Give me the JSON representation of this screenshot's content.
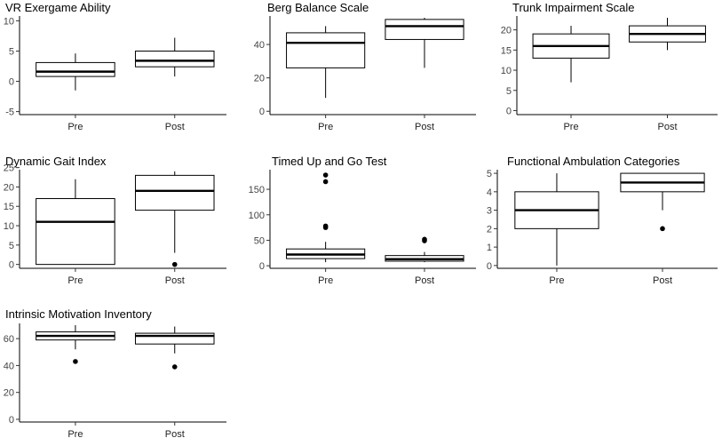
{
  "chart_data": [
    {
      "type": "boxplot",
      "title": "VR Exergame Ability",
      "categories": [
        "Pre",
        "Post"
      ],
      "ylim": [
        -5.5,
        10.5
      ],
      "yticks": [
        -5,
        0,
        5,
        10
      ],
      "ytick_labels": [
        "-5",
        "0",
        "5",
        "10"
      ],
      "boxes": [
        {
          "category": "Pre",
          "whisker_low": -1.5,
          "q1": 0.8,
          "median": 1.6,
          "q3": 3.1,
          "whisker_high": 4.6,
          "outliers": []
        },
        {
          "category": "Post",
          "whisker_low": 0.8,
          "q1": 2.4,
          "median": 3.4,
          "q3": 5.0,
          "whisker_high": 7.2,
          "outliers": []
        }
      ]
    },
    {
      "type": "boxplot",
      "title": "Berg Balance Scale",
      "categories": [
        "Pre",
        "Post"
      ],
      "ylim": [
        -2,
        56
      ],
      "yticks": [
        0,
        20,
        40
      ],
      "ytick_labels": [
        "0",
        "20",
        "40"
      ],
      "boxes": [
        {
          "category": "Pre",
          "whisker_low": 8,
          "q1": 26,
          "median": 41,
          "q3": 47,
          "whisker_high": 51,
          "outliers": []
        },
        {
          "category": "Post",
          "whisker_low": 26,
          "q1": 43,
          "median": 51,
          "q3": 55,
          "whisker_high": 56,
          "outliers": []
        }
      ]
    },
    {
      "type": "boxplot",
      "title": "Trunk Impairment Scale",
      "categories": [
        "Pre",
        "Post"
      ],
      "ylim": [
        -1,
        23
      ],
      "yticks": [
        0,
        5,
        10,
        15,
        20
      ],
      "ytick_labels": [
        "0",
        "5",
        "10",
        "15",
        "20"
      ],
      "boxes": [
        {
          "category": "Pre",
          "whisker_low": 7,
          "q1": 13,
          "median": 16,
          "q3": 19,
          "whisker_high": 21,
          "outliers": []
        },
        {
          "category": "Post",
          "whisker_low": 15,
          "q1": 17,
          "median": 19,
          "q3": 21,
          "whisker_high": 23,
          "outliers": []
        }
      ]
    },
    {
      "type": "boxplot",
      "title": "Dynamic Gait Index",
      "categories": [
        "Pre",
        "Post"
      ],
      "ylim": [
        -1,
        24
      ],
      "yticks": [
        0,
        5,
        10,
        15,
        20,
        25
      ],
      "ytick_labels": [
        "0",
        "5",
        "10",
        "15",
        "20",
        "25"
      ],
      "boxes": [
        {
          "category": "Pre",
          "whisker_low": 0,
          "q1": 0,
          "median": 11,
          "q3": 17,
          "whisker_high": 22,
          "outliers": []
        },
        {
          "category": "Post",
          "whisker_low": 3,
          "q1": 14,
          "median": 19,
          "q3": 23,
          "whisker_high": 24,
          "outliers": [
            0
          ]
        }
      ]
    },
    {
      "type": "boxplot",
      "title": "Timed Up and Go Test",
      "categories": [
        "Pre",
        "Post"
      ],
      "ylim": [
        -5,
        185
      ],
      "yticks": [
        0,
        50,
        100,
        150
      ],
      "ytick_labels": [
        "0",
        "50",
        "100",
        "150"
      ],
      "boxes": [
        {
          "category": "Pre",
          "whisker_low": 7,
          "q1": 14,
          "median": 22,
          "q3": 33,
          "whisker_high": 47,
          "outliers": [
            75,
            78,
            165,
            178
          ]
        },
        {
          "category": "Post",
          "whisker_low": 7,
          "q1": 9,
          "median": 13,
          "q3": 20,
          "whisker_high": 27,
          "outliers": [
            49,
            52
          ]
        }
      ]
    },
    {
      "type": "boxplot",
      "title": "Functional Ambulation Categories",
      "categories": [
        "Pre",
        "Post"
      ],
      "ylim": [
        -0.15,
        5.1
      ],
      "yticks": [
        0,
        1,
        2,
        3,
        4,
        5
      ],
      "ytick_labels": [
        "0",
        "1",
        "2",
        "3",
        "4",
        "5"
      ],
      "boxes": [
        {
          "category": "Pre",
          "whisker_low": 0,
          "q1": 2,
          "median": 3,
          "q3": 4,
          "whisker_high": 5,
          "outliers": []
        },
        {
          "category": "Post",
          "whisker_low": 3,
          "q1": 4,
          "median": 4.5,
          "q3": 5,
          "whisker_high": 5,
          "outliers": [
            2
          ]
        }
      ]
    },
    {
      "type": "boxplot",
      "title": "Intrinsic Motivation Inventory",
      "categories": [
        "Pre",
        "Post"
      ],
      "ylim": [
        -2,
        70
      ],
      "yticks": [
        0,
        20,
        40,
        60
      ],
      "ytick_labels": [
        "0",
        "20",
        "40",
        "60"
      ],
      "boxes": [
        {
          "category": "Pre",
          "whisker_low": 52,
          "q1": 59,
          "median": 62,
          "q3": 65,
          "whisker_high": 70,
          "outliers": [
            43
          ]
        },
        {
          "category": "Post",
          "whisker_low": 49,
          "q1": 56,
          "median": 62,
          "q3": 64,
          "whisker_high": 69,
          "outliers": [
            39
          ]
        }
      ]
    }
  ]
}
